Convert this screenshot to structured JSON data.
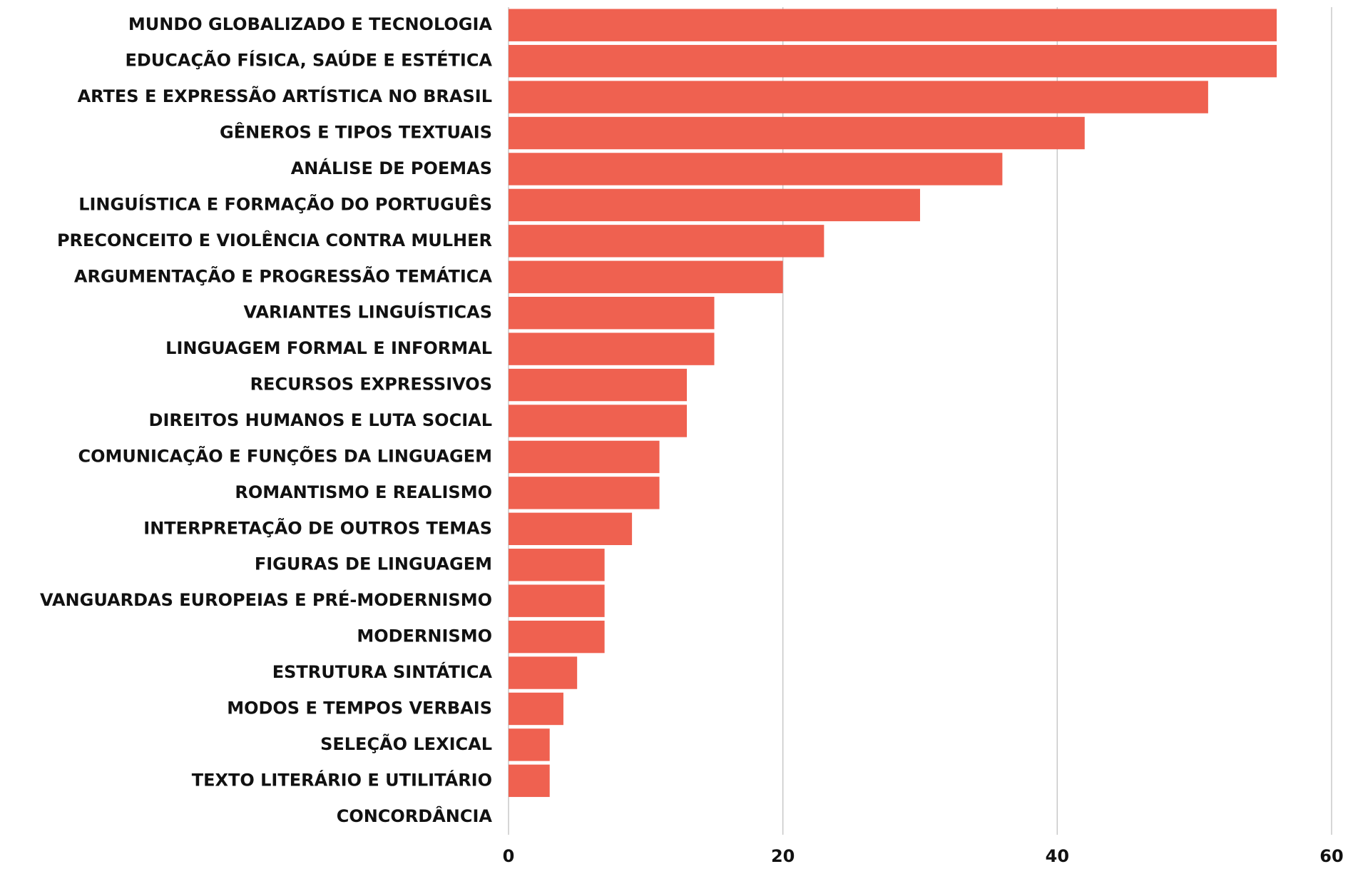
{
  "chart_data": {
    "type": "bar",
    "orientation": "horizontal",
    "categories": [
      "MUNDO GLOBALIZADO E TECNOLOGIA",
      "EDUCAÇÃO FÍSICA, SAÚDE E ESTÉTICA",
      "ARTES E EXPRESSÃO ARTÍSTICA NO BRASIL",
      "GÊNEROS E TIPOS TEXTUAIS",
      "ANÁLISE DE POEMAS",
      "LINGUÍSTICA E FORMAÇÃO DO PORTUGUÊS",
      "PRECONCEITO E VIOLÊNCIA CONTRA MULHER",
      "ARGUMENTAÇÃO E PROGRESSÃO TEMÁTICA",
      "VARIANTES LINGUÍSTICAS",
      "LINGUAGEM FORMAL E INFORMAL",
      "RECURSOS EXPRESSIVOS",
      "DIREITOS HUMANOS E LUTA SOCIAL",
      "COMUNICAÇÃO E FUNÇÕES DA LINGUAGEM",
      "ROMANTISMO E REALISMO",
      "INTERPRETAÇÃO DE OUTROS TEMAS",
      "FIGURAS DE LINGUAGEM",
      "VANGUARDAS EUROPEIAS E PRÉ-MODERNISMO",
      "MODERNISMO",
      "ESTRUTURA SINTÁTICA",
      "MODOS E TEMPOS VERBAIS",
      "SELEÇÃO LEXICAL",
      "TEXTO LITERÁRIO E UTILITÁRIO",
      "CONCORDÂNCIA"
    ],
    "values": [
      56,
      56,
      51,
      42,
      36,
      30,
      23,
      20,
      15,
      15,
      13,
      13,
      11,
      11,
      9,
      7,
      7,
      7,
      5,
      4,
      3,
      3,
      0
    ],
    "color": "#ef6150",
    "xlim": [
      0,
      60
    ],
    "xticks": [
      0,
      20,
      40,
      60
    ],
    "grid": true
  }
}
